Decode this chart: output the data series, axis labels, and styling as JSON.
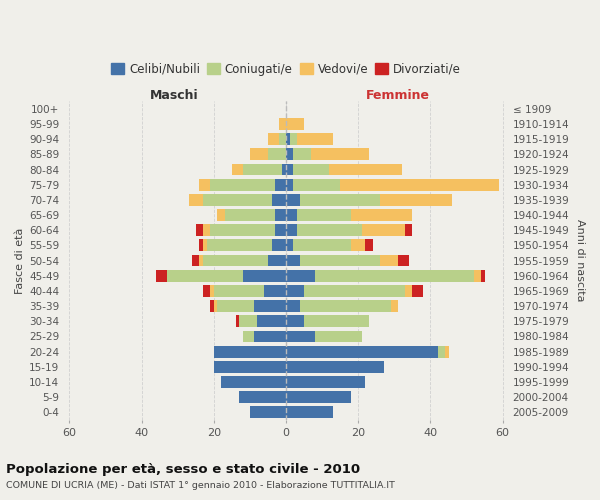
{
  "age_groups": [
    "0-4",
    "5-9",
    "10-14",
    "15-19",
    "20-24",
    "25-29",
    "30-34",
    "35-39",
    "40-44",
    "45-49",
    "50-54",
    "55-59",
    "60-64",
    "65-69",
    "70-74",
    "75-79",
    "80-84",
    "85-89",
    "90-94",
    "95-99",
    "100+"
  ],
  "birth_years": [
    "2005-2009",
    "2000-2004",
    "1995-1999",
    "1990-1994",
    "1985-1989",
    "1980-1984",
    "1975-1979",
    "1970-1974",
    "1965-1969",
    "1960-1964",
    "1955-1959",
    "1950-1954",
    "1945-1949",
    "1940-1944",
    "1935-1939",
    "1930-1934",
    "1925-1929",
    "1920-1924",
    "1915-1919",
    "1910-1914",
    "≤ 1909"
  ],
  "male_celibi": [
    10,
    13,
    18,
    20,
    20,
    9,
    8,
    9,
    6,
    12,
    5,
    4,
    3,
    3,
    4,
    3,
    1,
    0,
    0,
    0,
    0
  ],
  "male_coniugati": [
    0,
    0,
    0,
    0,
    0,
    3,
    5,
    10,
    14,
    21,
    18,
    18,
    18,
    14,
    19,
    18,
    11,
    5,
    2,
    0,
    0
  ],
  "male_vedovi": [
    0,
    0,
    0,
    0,
    0,
    0,
    0,
    1,
    1,
    0,
    1,
    1,
    2,
    2,
    4,
    3,
    3,
    5,
    3,
    2,
    0
  ],
  "male_divorziati": [
    0,
    0,
    0,
    0,
    0,
    0,
    1,
    1,
    2,
    3,
    2,
    1,
    2,
    0,
    0,
    0,
    0,
    0,
    0,
    0,
    0
  ],
  "female_nubili": [
    13,
    18,
    22,
    27,
    42,
    8,
    5,
    4,
    5,
    8,
    4,
    2,
    3,
    3,
    4,
    2,
    2,
    2,
    1,
    0,
    0
  ],
  "female_coniugate": [
    0,
    0,
    0,
    0,
    2,
    13,
    18,
    25,
    28,
    44,
    22,
    16,
    18,
    15,
    22,
    13,
    10,
    5,
    2,
    0,
    0
  ],
  "female_vedove": [
    0,
    0,
    0,
    0,
    1,
    0,
    0,
    2,
    2,
    2,
    5,
    4,
    12,
    17,
    20,
    44,
    20,
    16,
    10,
    5,
    0
  ],
  "female_divorziate": [
    0,
    0,
    0,
    0,
    0,
    0,
    0,
    0,
    3,
    1,
    3,
    2,
    2,
    0,
    0,
    0,
    0,
    0,
    0,
    0,
    0
  ],
  "color_celibi": "#4472A8",
  "color_coniugati": "#b8d08a",
  "color_vedovi": "#f5c060",
  "color_divorziati": "#cc2222",
  "bg_color": "#f0efea",
  "grid_color": "#d0d0d0",
  "xlim": 62,
  "title": "Popolazione per età, sesso e stato civile - 2010",
  "subtitle": "COMUNE DI UCRIA (ME) - Dati ISTAT 1° gennaio 2010 - Elaborazione TUTTITALIA.IT",
  "ylabel_left": "Fasce di età",
  "ylabel_right": "Anni di nascita",
  "header_male": "Maschi",
  "header_female": "Femmine",
  "legend_labels": [
    "Celibi/Nubili",
    "Coniugati/e",
    "Vedovi/e",
    "Divorziati/e"
  ],
  "bar_height": 0.78,
  "xtick_labels": [
    "60",
    "40",
    "20",
    "0",
    "20",
    "40",
    "60"
  ]
}
